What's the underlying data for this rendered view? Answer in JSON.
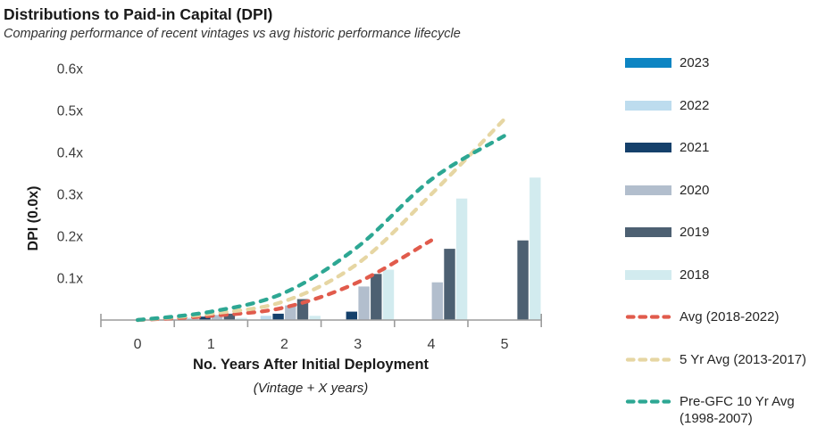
{
  "header": {
    "title": "Distributions to Paid-in Capital (DPI)",
    "subtitle": "Comparing performance of recent vintages vs avg historic performance lifecycle"
  },
  "chart_data": {
    "type": "bar",
    "title": "Distributions to Paid-in Capital (DPI)",
    "subtitle": "Comparing performance of recent vintages vs avg historic performance lifecycle",
    "xlabel": "No. Years After Initial Deployment",
    "xlabel_sub": "(Vintage + X years)",
    "ylabel": "DPI (0.0x)",
    "x": [
      0,
      1,
      2,
      3,
      4,
      5
    ],
    "xtick_labels": [
      "0",
      "1",
      "2",
      "3",
      "4",
      "5"
    ],
    "ytick_labels_top_down": [
      "0.6x",
      "0.5x",
      "0.4x",
      "0.3x",
      "0.2x",
      "0.1x"
    ],
    "ytick_values_top_down": [
      0.6,
      0.5,
      0.4,
      0.3,
      0.2,
      0.1
    ],
    "ylim": [
      0,
      0.6
    ],
    "grid": false,
    "legend_position": "right",
    "bar_series": [
      {
        "name": "2023",
        "color": "#0d85c3",
        "values": [
          0,
          0,
          0,
          0,
          0,
          0
        ]
      },
      {
        "name": "2022",
        "color": "#bddcee",
        "values": [
          0,
          0.005,
          0.01,
          0,
          0,
          0
        ]
      },
      {
        "name": "2021",
        "color": "#15406b",
        "values": [
          0,
          0.008,
          0.015,
          0.02,
          0,
          0
        ]
      },
      {
        "name": "2020",
        "color": "#b2becd",
        "values": [
          0,
          0.012,
          0.035,
          0.08,
          0.09,
          0
        ]
      },
      {
        "name": "2019",
        "color": "#4d6072",
        "values": [
          0,
          0.015,
          0.05,
          0.11,
          0.17,
          0.19
        ]
      },
      {
        "name": "2018",
        "color": "#d2ebef",
        "values": [
          0,
          0.005,
          0.01,
          0.12,
          0.29,
          0.34
        ]
      }
    ],
    "line_series": [
      {
        "name": "Avg (2018-2022)",
        "color": "#e15b4c",
        "values": [
          0,
          0.01,
          0.03,
          0.09,
          0.19,
          null
        ]
      },
      {
        "name": "5 Yr Avg (2013-2017)",
        "color": "#e6d6a3",
        "values": [
          0,
          0.015,
          0.045,
          0.135,
          0.3,
          0.48
        ]
      },
      {
        "name": "Pre-GFC 10 Yr Avg (1998-2007)",
        "color": "#2da793",
        "values": [
          0,
          0.02,
          0.065,
          0.175,
          0.335,
          0.44
        ]
      }
    ]
  },
  "legend": {
    "items": [
      {
        "label": "2023",
        "type": "bar",
        "color": "#0d85c3"
      },
      {
        "label": "2022",
        "type": "bar",
        "color": "#bddcee"
      },
      {
        "label": "2021",
        "type": "bar",
        "color": "#15406b"
      },
      {
        "label": "2020",
        "type": "bar",
        "color": "#b2becd"
      },
      {
        "label": "2019",
        "type": "bar",
        "color": "#4d6072"
      },
      {
        "label": "2018",
        "type": "bar",
        "color": "#d2ebef"
      },
      {
        "label": "Avg (2018-2022)",
        "type": "line",
        "color": "#e15b4c"
      },
      {
        "label": "5 Yr Avg (2013-2017)",
        "type": "line",
        "color": "#e6d6a3"
      },
      {
        "label": "Pre-GFC 10 Yr Avg",
        "label2": "(1998-2007)",
        "type": "line",
        "color": "#2da793"
      }
    ]
  }
}
